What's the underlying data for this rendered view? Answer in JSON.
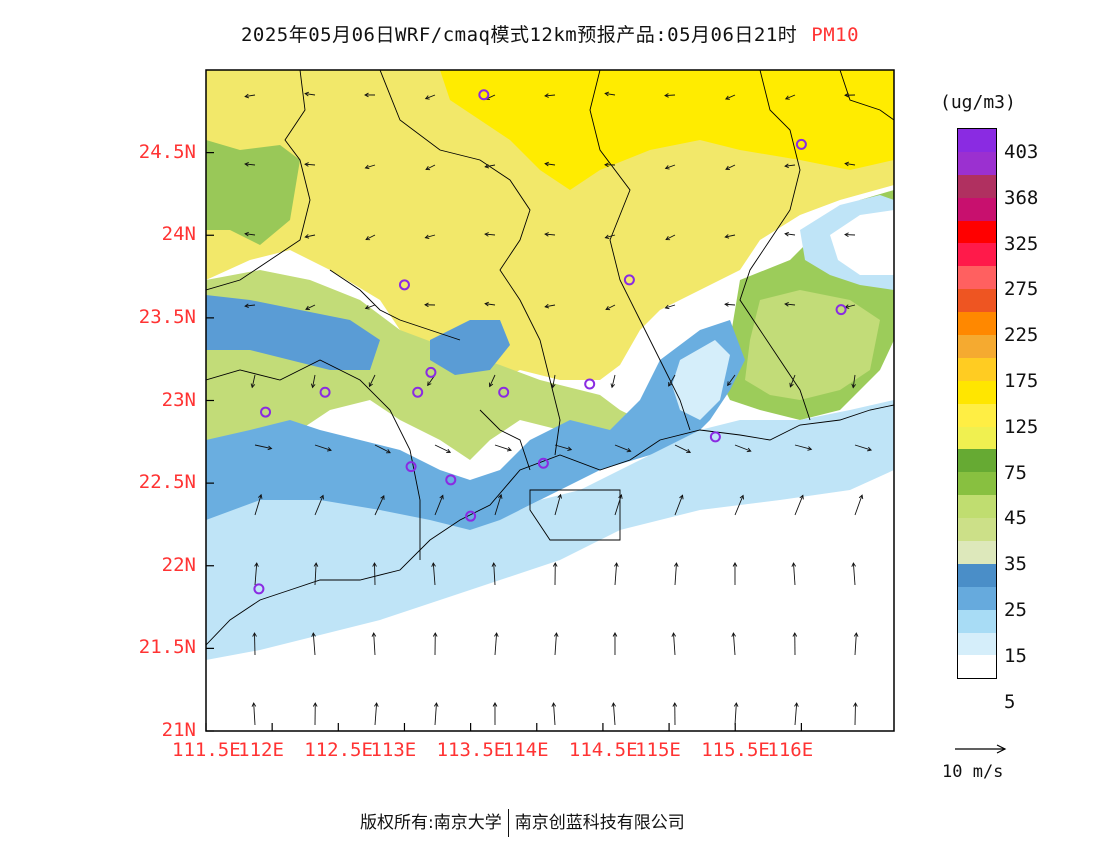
{
  "title": {
    "main": "2025年05月06日WRF/cmaq模式12km预报产品:05月06日21时",
    "pollutant": "PM10"
  },
  "units": "(ug/m3)",
  "colorbar": {
    "labels": [
      "403",
      "368",
      "325",
      "275",
      "225",
      "175",
      "125",
      "75",
      "45",
      "35",
      "25",
      "15",
      "5"
    ],
    "colors": [
      "#8a2be2",
      "#9b30d0",
      "#b03060",
      "#c8106e",
      "#ff0000",
      "#ff1a4a",
      "#ff6060",
      "#ee5522",
      "#ff8800",
      "#f5aa30",
      "#ffcc22",
      "#ffe600",
      "#ffee44",
      "#f0f050",
      "#66aa33",
      "#88c040",
      "#c0dd70",
      "#cce088",
      "#dde8bb",
      "#4a8ec8",
      "#66aadd",
      "#a8dcf5",
      "#d5eefa",
      "#ffffff"
    ]
  },
  "axes": {
    "y_labels": [
      "24.5N",
      "24N",
      "23.5N",
      "23N",
      "22.5N",
      "22N",
      "21.5N",
      "21N"
    ],
    "x_labels": [
      "111.5E",
      "112E",
      "112.5E",
      "113E",
      "113.5E",
      "114E",
      "114.5E",
      "115E",
      "115.5E",
      "116E"
    ]
  },
  "wind_reference": "10 m/s",
  "footer": {
    "left": "版权所有:南京大学",
    "right": "南京创蓝科技有限公司"
  },
  "stations": [
    {
      "lon": 113.6,
      "lat": 24.85
    },
    {
      "lon": 116.0,
      "lat": 24.55
    },
    {
      "lon": 113.0,
      "lat": 23.7
    },
    {
      "lon": 114.7,
      "lat": 23.73
    },
    {
      "lon": 116.3,
      "lat": 23.55
    },
    {
      "lon": 112.4,
      "lat": 23.05
    },
    {
      "lon": 113.1,
      "lat": 23.05
    },
    {
      "lon": 113.2,
      "lat": 23.17
    },
    {
      "lon": 113.75,
      "lat": 23.05
    },
    {
      "lon": 114.4,
      "lat": 23.1
    },
    {
      "lon": 111.95,
      "lat": 22.93
    },
    {
      "lon": 115.35,
      "lat": 22.78
    },
    {
      "lon": 113.05,
      "lat": 22.6
    },
    {
      "lon": 113.35,
      "lat": 22.52
    },
    {
      "lon": 114.05,
      "lat": 22.62
    },
    {
      "lon": 113.5,
      "lat": 22.3
    },
    {
      "lon": 111.9,
      "lat": 21.86
    }
  ]
}
